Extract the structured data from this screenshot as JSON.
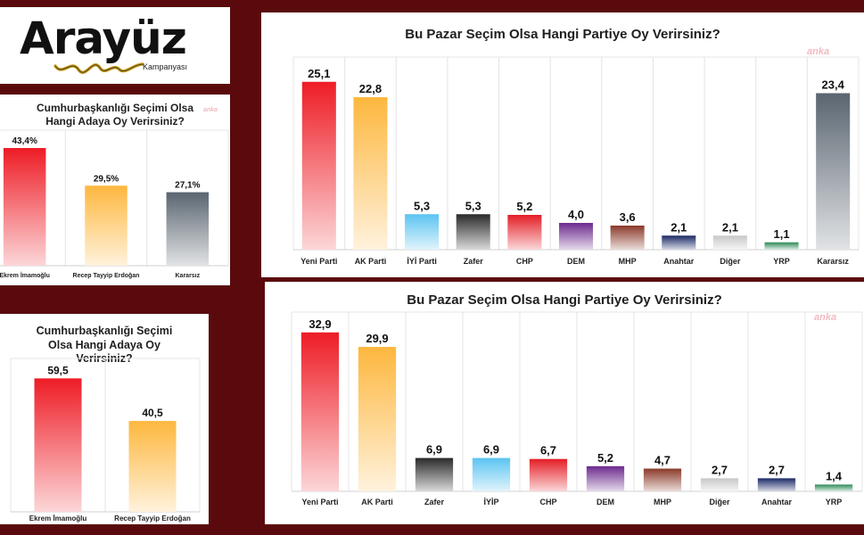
{
  "logo": {
    "word": "Arayüz",
    "sub": "Kampanyası"
  },
  "watermark": "anka",
  "chart_data": [
    {
      "id": "c1",
      "type": "bar",
      "title": "Bu Pazar Seçim Olsa Hangi Partiye Oy Verirsiniz?",
      "categories": [
        "Yeni Parti",
        "AK Parti",
        "İYİ Parti",
        "Zafer",
        "CHP",
        "DEM",
        "MHP",
        "Anahtar",
        "Diğer",
        "YRP",
        "Kararsız"
      ],
      "values": [
        25.1,
        22.8,
        5.3,
        5.3,
        5.2,
        4.0,
        3.6,
        2.1,
        2.1,
        1.1,
        23.4
      ],
      "labels": [
        "25,1",
        "22,8",
        "5,3",
        "5,3",
        "5,2",
        "4,0",
        "3,6",
        "2,1",
        "2,1",
        "1,1",
        "23,4"
      ],
      "colors": [
        "#ee1c25",
        "#fdb73e",
        "#5bc4f1",
        "#2a2a2a",
        "#e41e26",
        "#6d2a8e",
        "#8b3a2a",
        "#1b2a66",
        "#c8c8c8",
        "#2e8b57",
        "#5a6570"
      ],
      "ylim": [
        0,
        28
      ]
    },
    {
      "id": "c2",
      "type": "bar",
      "title": "Bu Pazar Seçim Olsa Hangi Partiye Oy Verirsiniz?",
      "categories": [
        "Yeni Parti",
        "AK Parti",
        "Zafer",
        "İYİP",
        "CHP",
        "DEM",
        "MHP",
        "Diğer",
        "Anahtar",
        "YRP"
      ],
      "values": [
        32.9,
        29.9,
        6.9,
        6.9,
        6.7,
        5.2,
        4.7,
        2.7,
        2.7,
        1.4
      ],
      "labels": [
        "32,9",
        "29,9",
        "6,9",
        "6,9",
        "6,7",
        "5,2",
        "4,7",
        "2,7",
        "2,7",
        "1,4"
      ],
      "colors": [
        "#ee1c25",
        "#fdb73e",
        "#2a2a2a",
        "#5bc4f1",
        "#e41e26",
        "#6d2a8e",
        "#8b3a2a",
        "#c8c8c8",
        "#1b2a66",
        "#2e8b57"
      ],
      "ylim": [
        0,
        36
      ]
    },
    {
      "id": "c3",
      "type": "bar",
      "title": "Cumhurbaşkanlığı Seçimi Olsa Hangi Adaya Oy Verirsiniz?",
      "categories": [
        "Ekrem İmamoğlu",
        "Recep Tayyip Erdoğan",
        "Kararsız"
      ],
      "values": [
        43.4,
        29.5,
        27.1
      ],
      "labels": [
        "43,4%",
        "29,5%",
        "27,1%"
      ],
      "colors": [
        "#ee1c25",
        "#fdb73e",
        "#5a6570"
      ],
      "ylim": [
        0,
        48
      ]
    },
    {
      "id": "c4",
      "type": "bar",
      "title": "Cumhurbaşkanlığı Seçimi Olsa Hangi Adaya Oy Verirsiniz?",
      "categories": [
        "Ekrem İmamoğlu",
        "Recep Tayyip Erdoğan"
      ],
      "values": [
        59.5,
        40.5
      ],
      "labels": [
        "59,5",
        "40,5"
      ],
      "colors": [
        "#ee1c25",
        "#fdb73e"
      ],
      "ylim": [
        0,
        66
      ]
    }
  ]
}
